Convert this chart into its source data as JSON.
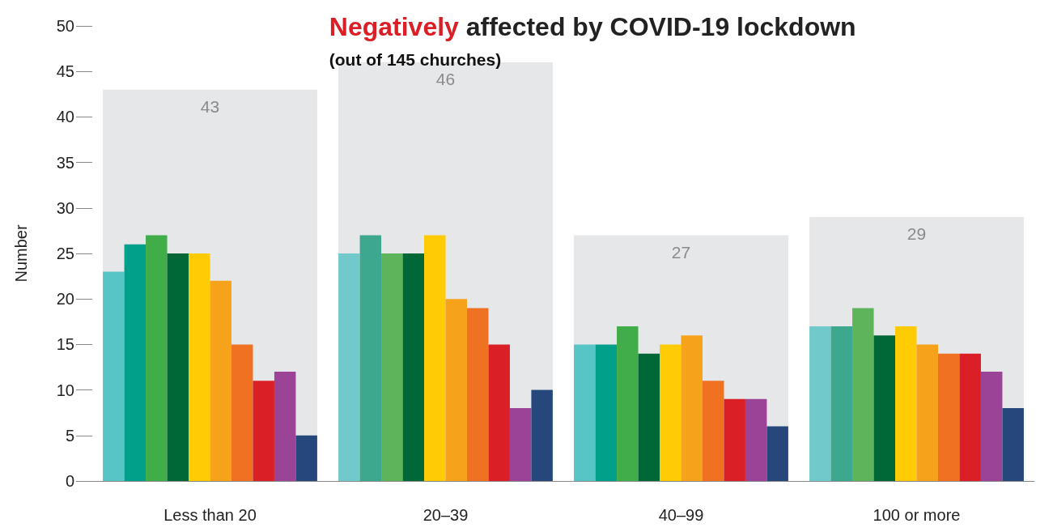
{
  "chart_data": {
    "type": "bar",
    "title": "Negatively affected by COVID-19 lockdown",
    "subtitle": "(out of 145 churches)",
    "ylabel": "Number",
    "categories": [
      "Less than 20",
      "20–39",
      "40–99",
      "100 or more"
    ],
    "ylim": [
      0,
      50
    ],
    "yticks": [
      0,
      5,
      10,
      15,
      20,
      25,
      30,
      35,
      40,
      45,
      50
    ],
    "grid": false,
    "series": [
      {
        "color": "#e6e7e9",
        "values": [
          43,
          46,
          27,
          29
        ],
        "value_labels": [
          "43",
          "46",
          "27",
          "29"
        ]
      },
      {
        "colors": [
          "#57c5c5",
          "#71c9cc",
          "#57c5c5",
          "#71c9cc"
        ],
        "values": [
          23,
          25,
          15,
          17
        ]
      },
      {
        "colors": [
          "#00a08a",
          "#3ea88f",
          "#00a08a",
          "#3ea88f"
        ],
        "values": [
          26,
          27,
          15,
          17
        ]
      },
      {
        "colors": [
          "#41ad49",
          "#5eb45a",
          "#41ad49",
          "#5eb45a"
        ],
        "values": [
          27,
          25,
          17,
          19
        ]
      },
      {
        "color": "#006837",
        "values": [
          25,
          25,
          14,
          16
        ]
      },
      {
        "color": "#ffcb05",
        "values": [
          25,
          27,
          15,
          17
        ]
      },
      {
        "color": "#f7a21b",
        "values": [
          22,
          20,
          16,
          15
        ]
      },
      {
        "color": "#f07122",
        "values": [
          15,
          19,
          11,
          14
        ]
      },
      {
        "color": "#da1f26",
        "values": [
          11,
          15,
          9,
          14
        ]
      },
      {
        "color": "#9b4497",
        "values": [
          12,
          8,
          9,
          12
        ]
      },
      {
        "color": "#25477b",
        "values": [
          5,
          10,
          6,
          8
        ]
      }
    ]
  }
}
